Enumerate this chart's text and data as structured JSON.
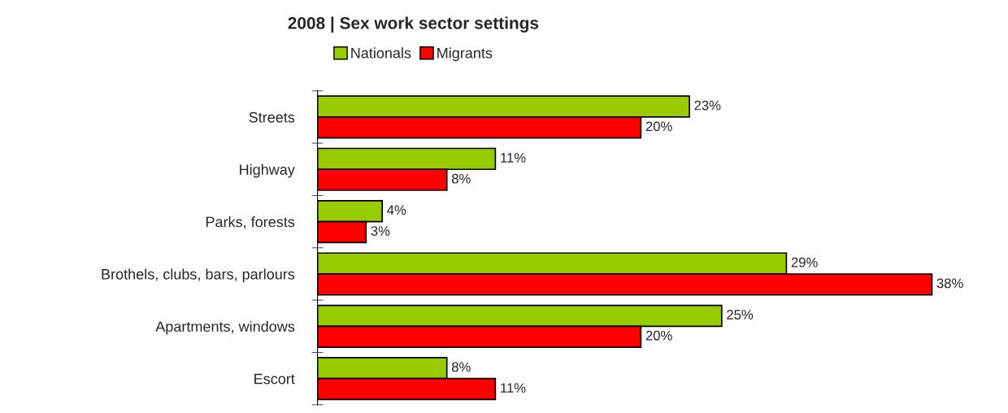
{
  "chart_data": {
    "type": "bar",
    "orientation": "horizontal",
    "title": "2008 | Sex work sector settings",
    "categories": [
      "Streets",
      "Highway",
      "Parks, forests",
      "Brothels, clubs, bars, parlours",
      "Apartments, windows",
      "Escort"
    ],
    "series": [
      {
        "name": "Nationals",
        "color": "#99cc00",
        "values": [
          23,
          11,
          4,
          29,
          25,
          8
        ],
        "value_labels": [
          "23%",
          "11%",
          "4%",
          "29%",
          "25%",
          "8%"
        ]
      },
      {
        "name": "Migrants",
        "color": "#ff0000",
        "values": [
          20,
          8,
          3,
          38,
          20,
          11
        ],
        "value_labels": [
          "20%",
          "8%",
          "3%",
          "38%",
          "20%",
          "11%"
        ]
      }
    ],
    "legend": "top",
    "grid": false,
    "tick_labels": "y"
  }
}
